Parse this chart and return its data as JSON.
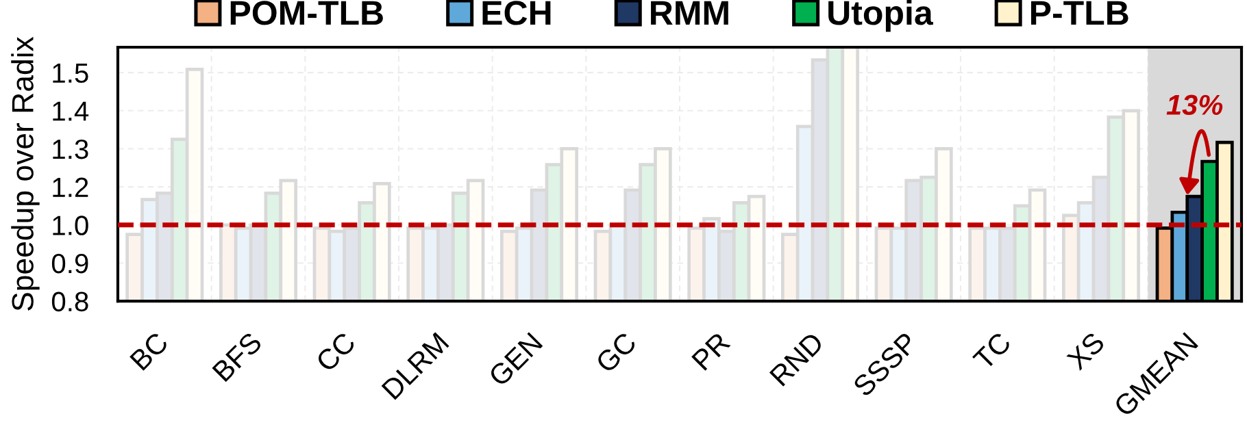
{
  "chart_data": {
    "type": "bar",
    "ylabel": "Speedup over Radix",
    "categories": [
      "BC",
      "BFS",
      "CC",
      "DLRM",
      "GEN",
      "GC",
      "PR",
      "RND",
      "SSSP",
      "TC",
      "XS",
      "GMEAN"
    ],
    "series": [
      {
        "name": "POM-TLB",
        "color": "#f4b183",
        "colors": [
          "#fcf3ec",
          "#fcf3ec",
          "#fcf3ec",
          "#fcf3ec",
          "#fcf3ec",
          "#fcf3ec",
          "#fcf3ec",
          "#fcf3ec",
          "#fcf3ec",
          "#fcf3ec",
          "#fcf3ec",
          "#f4b183"
        ],
        "values": [
          1.01,
          1.04,
          1.03,
          1.03,
          1.02,
          1.02,
          1.03,
          1.01,
          1.03,
          1.03,
          1.07,
          1.03
        ]
      },
      {
        "name": "ECH",
        "color": "#5ea9d9",
        "colors": [
          "#eaf3fa",
          "#eaf3fa",
          "#eaf3fa",
          "#eaf3fa",
          "#eaf3fa",
          "#eaf3fa",
          "#eaf3fa",
          "#eaf3fa",
          "#eaf3fa",
          "#eaf3fa",
          "#eaf3fa",
          "#5ea9d9"
        ],
        "values": [
          1.12,
          1.03,
          1.02,
          1.03,
          1.03,
          1.04,
          1.06,
          1.35,
          1.03,
          1.03,
          1.11,
          1.08
        ]
      },
      {
        "name": "RMM",
        "color": "#203864",
        "colors": [
          "#e1e4ea",
          "#e1e4ea",
          "#e1e4ea",
          "#e1e4ea",
          "#e1e4ea",
          "#e1e4ea",
          "#e1e4ea",
          "#e1e4ea",
          "#e1e4ea",
          "#e1e4ea",
          "#e1e4ea",
          "#203864"
        ],
        "values": [
          1.14,
          1.04,
          1.03,
          1.04,
          1.15,
          1.15,
          1.02,
          1.56,
          1.18,
          1.03,
          1.19,
          1.13
        ]
      },
      {
        "name": "Utopia",
        "color": "#00b050",
        "colors": [
          "#dff3e6",
          "#dff3e6",
          "#dff3e6",
          "#dff3e6",
          "#dff3e6",
          "#dff3e6",
          "#dff3e6",
          "#dff3e6",
          "#dff3e6",
          "#dff3e6",
          "#dff3e6",
          "#00b050"
        ],
        "values": [
          1.31,
          1.14,
          1.11,
          1.14,
          1.23,
          1.23,
          1.11,
          1.6,
          1.19,
          1.1,
          1.38,
          1.24
        ]
      },
      {
        "name": "P-TLB",
        "color": "#fff2cc",
        "colors": [
          "#fffdf6",
          "#fffdf6",
          "#fffdf6",
          "#fffdf6",
          "#fffdf6",
          "#fffdf6",
          "#fffdf6",
          "#fffdf6",
          "#fffdf6",
          "#fffdf6",
          "#fffdf6",
          "#fff2cc"
        ],
        "values": [
          1.53,
          1.18,
          1.17,
          1.18,
          1.28,
          1.28,
          1.13,
          1.6,
          1.28,
          1.15,
          1.4,
          1.3
        ]
      }
    ],
    "ylim": [
      0.8,
      1.6
    ],
    "yticks": [
      0.8,
      {
        "value": 0.92,
        "label": "0.9"
      },
      {
        "value": 1.04,
        "label": "1.0"
      },
      {
        "value": 1.16,
        "label": "1.2"
      },
      {
        "value": 1.28,
        "label": "1.3"
      },
      1.4,
      {
        "value": 1.52,
        "label": "1.5"
      }
    ],
    "grid": true,
    "legend": "top",
    "bands": [
      {
        "axis": "x",
        "from": "GMEAN",
        "to": "GMEAN",
        "color": "#d9d9d9"
      }
    ],
    "ref_lines": [
      {
        "axis": "y",
        "value": 1.04,
        "color": "#c00000",
        "line_style": "dashed"
      }
    ],
    "annotations": [
      "13%"
    ]
  }
}
